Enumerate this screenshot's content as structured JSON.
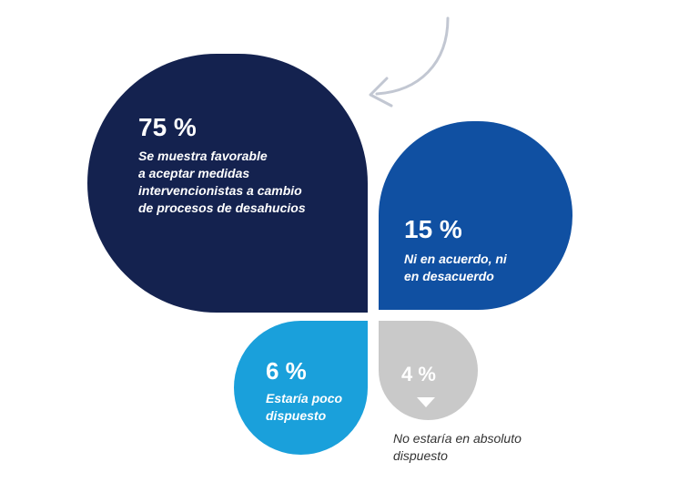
{
  "chart_data": {
    "type": "pie",
    "categories": [
      "Se muestra favorable\na aceptar medidas\nintervencionistas a cambio\nde procesos de desahucios",
      "Ni en acuerdo, ni\nen desacuerdo",
      "Estaría poco\ndispuesto",
      "No estaría en absoluto\ndispuesto"
    ],
    "values": [
      75,
      15,
      6,
      4
    ],
    "labels": [
      "75 %",
      "15 %",
      "6 %",
      "4 %"
    ],
    "colors": [
      "#14224f",
      "#1050a2",
      "#1aa0db",
      "#c9c9c9"
    ]
  }
}
